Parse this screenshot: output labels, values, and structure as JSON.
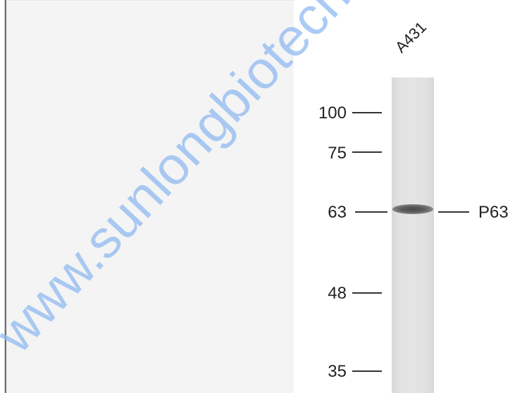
{
  "lane_label": "A431",
  "markers": [
    {
      "label": "100"
    },
    {
      "label": "75"
    },
    {
      "label": "63"
    },
    {
      "label": "48"
    },
    {
      "label": "35"
    }
  ],
  "target": {
    "label": "P63"
  },
  "watermark": {
    "text": "www.sunlongbiotech.com",
    "color": "#8fbaf0"
  },
  "colors": {
    "lane": "#e2e2e2",
    "band": "#4a4a4a",
    "ink": "#222222"
  }
}
